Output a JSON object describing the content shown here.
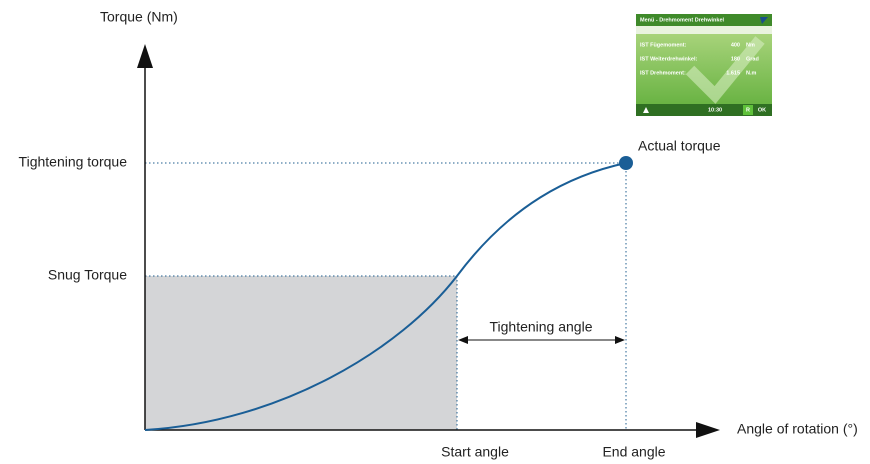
{
  "axes": {
    "y_label": "Torque (Nm)",
    "x_label": "Angle of rotation  (°)"
  },
  "levels": {
    "tightening_torque": "Tightening torque",
    "snug_torque": "Snug Torque"
  },
  "angles": {
    "start": "Start angle",
    "end": "End angle",
    "tightening": "Tightening angle"
  },
  "point": {
    "label": "Actual torque"
  },
  "screen": {
    "title": "Menü - Drehmoment Drehwinkel",
    "rows": [
      [
        "IST Fügemoment:",
        "400",
        "Nm"
      ],
      [
        "IST Weiterdrehwinkel:",
        "180",
        "Grad"
      ],
      [
        "IST Drehmoment:",
        "1.615",
        "N.m"
      ]
    ],
    "time": "10:30",
    "r": "R",
    "ok": "OK"
  }
}
